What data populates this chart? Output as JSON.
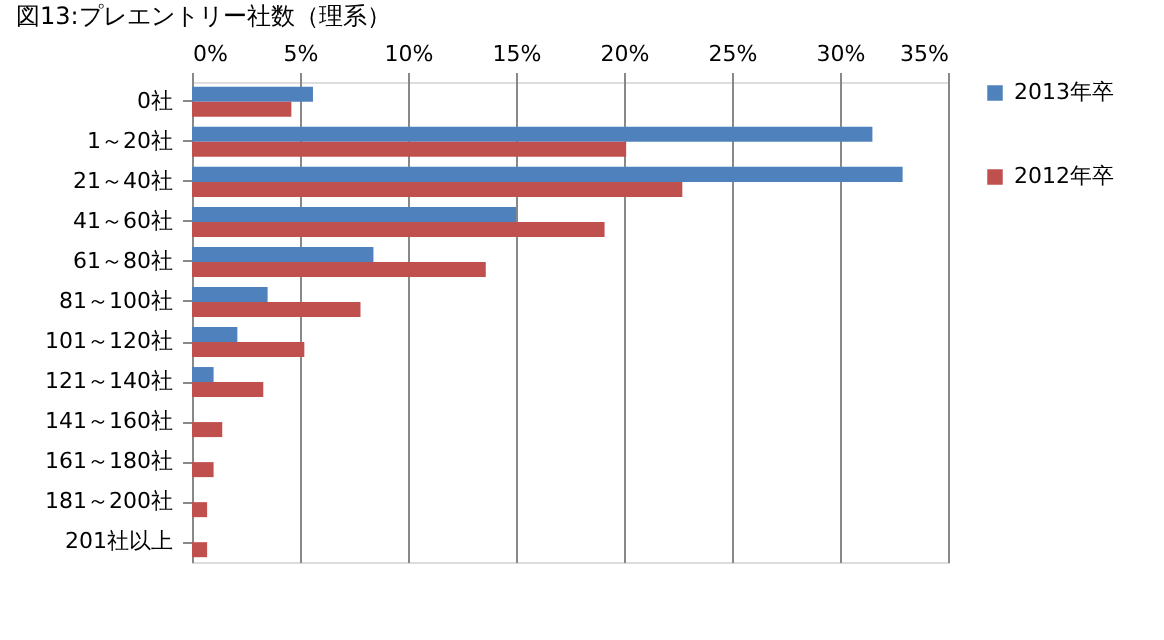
{
  "chart_data": {
    "type": "bar",
    "orientation": "horizontal",
    "title": "図13:プレエントリー社数（理系）",
    "categories": [
      "0社",
      "1～20社",
      "21～40社",
      "41～60社",
      "61～80社",
      "81～100社",
      "101～120社",
      "121～140社",
      "141～160社",
      "161～180社",
      "181～200社",
      "201社以上"
    ],
    "series": [
      {
        "name": "2013年卒",
        "color": "#4f81bd",
        "values": [
          5.6,
          31.5,
          32.9,
          15.0,
          8.4,
          3.5,
          2.1,
          1.0,
          0,
          0,
          0,
          0
        ]
      },
      {
        "name": "2012年卒",
        "color": "#c0504d",
        "values": [
          4.6,
          20.1,
          22.7,
          19.1,
          13.6,
          7.8,
          5.2,
          3.3,
          1.4,
          1.0,
          0.7,
          0.7
        ]
      }
    ],
    "xlim": [
      0,
      35
    ],
    "xticks": [
      {
        "value": 0,
        "label": "0%"
      },
      {
        "value": 5,
        "label": "5%"
      },
      {
        "value": 10,
        "label": "10%"
      },
      {
        "value": 15,
        "label": "15%"
      },
      {
        "value": 20,
        "label": "20%"
      },
      {
        "value": 25,
        "label": "25%"
      },
      {
        "value": 30,
        "label": "30%"
      },
      {
        "value": 35,
        "label": "35%"
      }
    ],
    "grid": "x",
    "legend": "right"
  }
}
